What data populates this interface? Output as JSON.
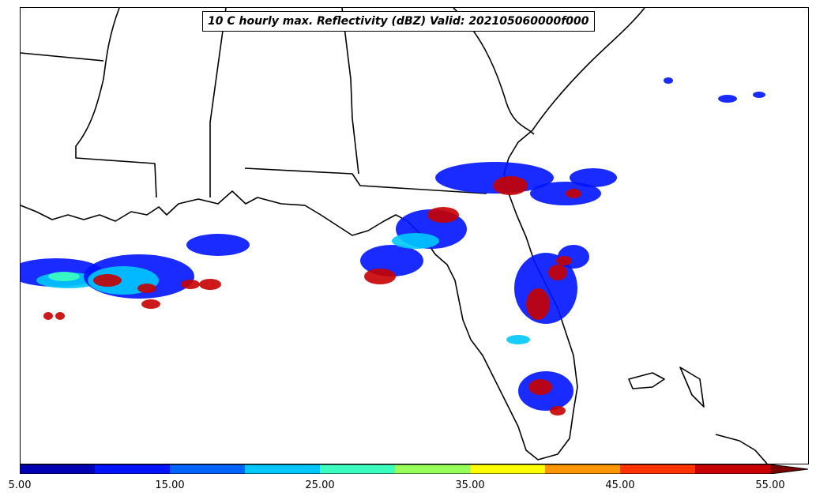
{
  "title": "10 C hourly max. Reflectivity (dBZ) Valid: 202105060000f000",
  "colorbar": {
    "colors": [
      "#0000b4",
      "#0014ff",
      "#0064ff",
      "#00c8ff",
      "#3cffbe",
      "#96ff5a",
      "#ffff00",
      "#ff9600",
      "#ff3200",
      "#c80000",
      "#7a0000"
    ],
    "tick_labels": [
      "5.00",
      "15.00",
      "25.00",
      "35.00",
      "45.00",
      "55.00"
    ]
  },
  "echo_colors": {
    "light": "#0014ff",
    "moderate": "#00c8ff",
    "green": "#3cffbe",
    "yellow": "#ffff00",
    "heavy": "#c80000"
  }
}
